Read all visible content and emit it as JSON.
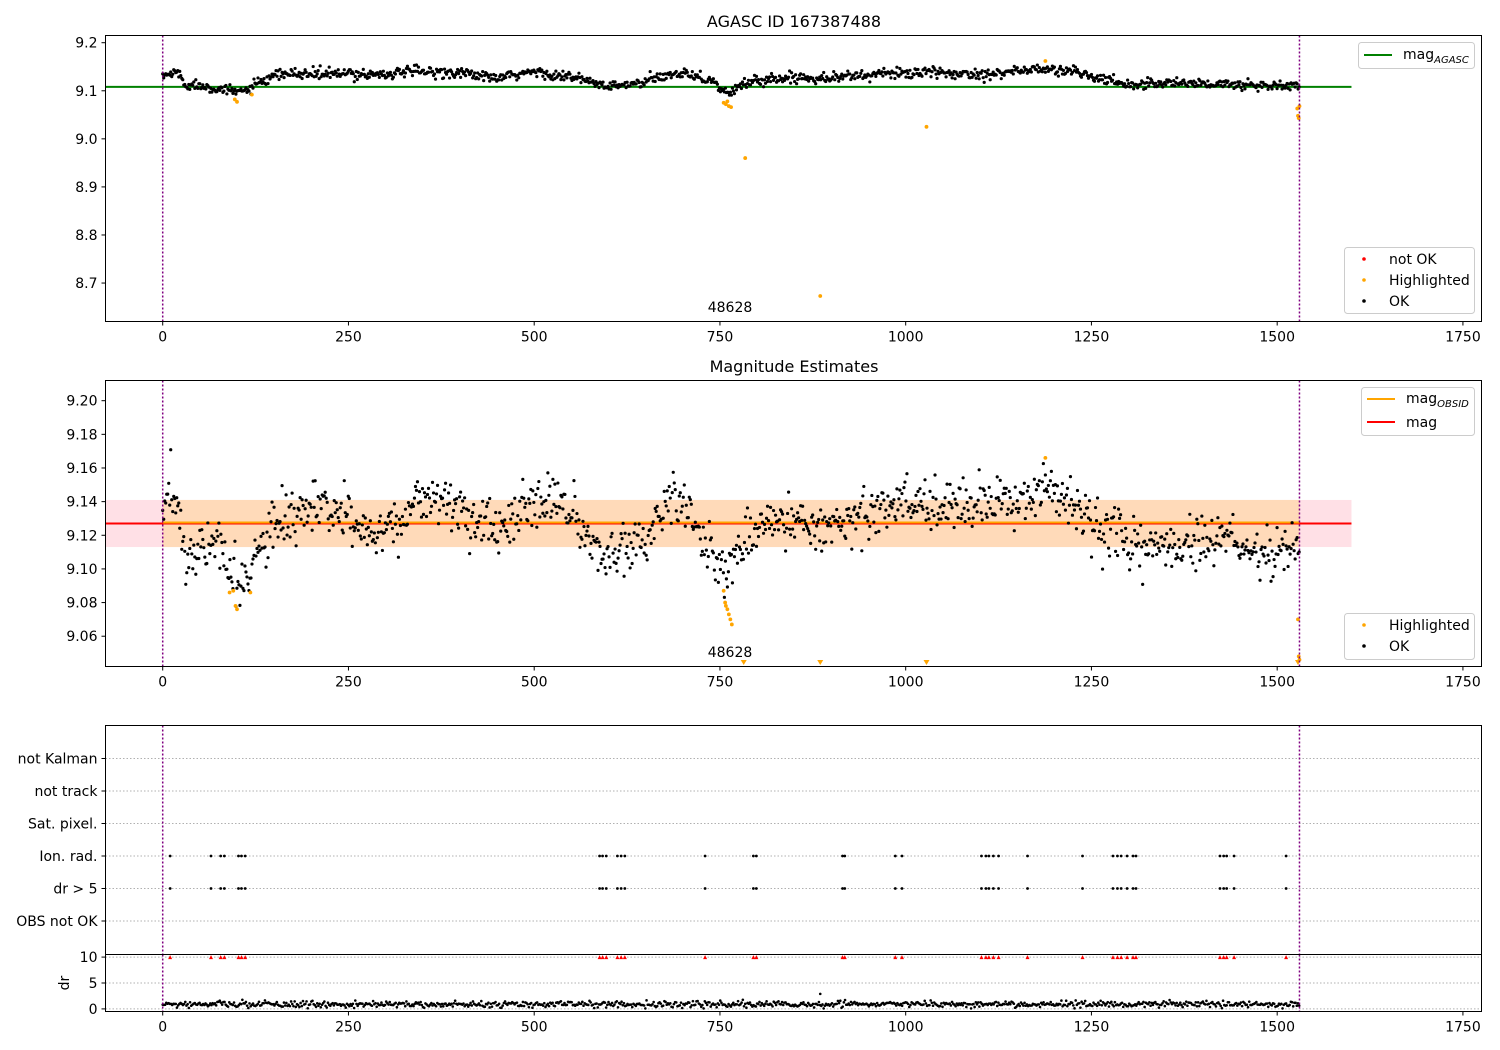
{
  "colors": {
    "ok": "#000000",
    "highlighted": "#ffa500",
    "not_ok": "#ff0000",
    "mag_agasc": "#008000",
    "mag_obsid": "#ffa500",
    "mag": "#ff0000",
    "obs_band": "#ffdab9",
    "mag_band": "#ffe0e6",
    "interval_line": "#800080",
    "grid": "#b0b0b0"
  },
  "chart_data": [
    {
      "id": "agasc",
      "type": "scatter",
      "title": "AGASC ID 167387488",
      "annotation": "48628",
      "annotation_x": 760,
      "xlim": [
        -77,
        1775
      ],
      "ylim": [
        8.62,
        9.215
      ],
      "xticks": [
        0,
        250,
        500,
        750,
        1000,
        1250,
        1500,
        1750
      ],
      "yticks": [
        8.7,
        8.8,
        8.9,
        9.0,
        9.1,
        9.2
      ],
      "grid": false,
      "legend": [
        {
          "label": "mag",
          "sub": "AGASC",
          "kind": "line",
          "color": "#008000",
          "placement": "top-right"
        },
        {
          "label": "not OK",
          "kind": "dot",
          "color": "#ff0000",
          "placement": "bottom-right"
        },
        {
          "label": "Highlighted",
          "kind": "dot",
          "color": "#ffa500",
          "placement": "bottom-right"
        },
        {
          "label": "OK",
          "kind": "dot",
          "color": "#000000",
          "placement": "bottom-right"
        }
      ],
      "hlines": [
        {
          "name": "mag_AGASC",
          "y": 9.108,
          "x": [
            -77,
            1600
          ],
          "color": "#008000"
        }
      ],
      "vlines": [
        0,
        1530
      ],
      "trend": [
        [
          0,
          9.13
        ],
        [
          20,
          9.14
        ],
        [
          30,
          9.113
        ],
        [
          60,
          9.11
        ],
        [
          90,
          9.098
        ],
        [
          110,
          9.1
        ],
        [
          130,
          9.115
        ],
        [
          160,
          9.135
        ],
        [
          250,
          9.135
        ],
        [
          300,
          9.135
        ],
        [
          340,
          9.14
        ],
        [
          400,
          9.138
        ],
        [
          450,
          9.125
        ],
        [
          500,
          9.14
        ],
        [
          560,
          9.125
        ],
        [
          600,
          9.108
        ],
        [
          640,
          9.115
        ],
        [
          700,
          9.14
        ],
        [
          740,
          9.12
        ],
        [
          760,
          9.093
        ],
        [
          790,
          9.12
        ],
        [
          850,
          9.128
        ],
        [
          900,
          9.128
        ],
        [
          1000,
          9.138
        ],
        [
          1100,
          9.135
        ],
        [
          1180,
          9.145
        ],
        [
          1230,
          9.14
        ],
        [
          1260,
          9.125
        ],
        [
          1300,
          9.113
        ],
        [
          1350,
          9.117
        ],
        [
          1400,
          9.115
        ],
        [
          1450,
          9.112
        ],
        [
          1520,
          9.11
        ],
        [
          1530,
          9.11
        ]
      ],
      "noise": 0.01,
      "highlighted_points": [
        [
          97,
          9.082
        ],
        [
          100,
          9.077
        ],
        [
          120,
          9.092
        ],
        [
          755,
          9.075
        ],
        [
          758,
          9.072
        ],
        [
          760,
          9.078
        ],
        [
          762,
          9.068
        ],
        [
          765,
          9.066
        ],
        [
          784,
          8.96
        ],
        [
          885,
          8.673
        ],
        [
          1028,
          9.025
        ],
        [
          1188,
          9.162
        ],
        [
          1527,
          9.063
        ],
        [
          1528,
          9.048
        ],
        [
          1529,
          9.043
        ],
        [
          1530,
          9.068
        ]
      ]
    },
    {
      "id": "estimates",
      "type": "scatter",
      "title": "Magnitude Estimates",
      "annotation": "48628",
      "annotation_x": 760,
      "xlim": [
        -77,
        1775
      ],
      "ylim": [
        9.042,
        9.212
      ],
      "xticks": [
        0,
        250,
        500,
        750,
        1000,
        1250,
        1500,
        1750
      ],
      "yticks": [
        9.06,
        9.08,
        9.1,
        9.12,
        9.14,
        9.16,
        9.18,
        9.2
      ],
      "grid": false,
      "legend": [
        {
          "label": "mag",
          "sub": "OBSID",
          "kind": "line",
          "color": "#ffa500",
          "placement": "top-right"
        },
        {
          "label": "mag",
          "kind": "line",
          "color": "#ff0000",
          "placement": "top-right"
        },
        {
          "label": "Highlighted",
          "kind": "dot",
          "color": "#ffa500",
          "placement": "bottom-right"
        },
        {
          "label": "OK",
          "kind": "dot",
          "color": "#000000",
          "placement": "bottom-right"
        }
      ],
      "mag": 9.127,
      "mag_band": [
        9.113,
        9.141
      ],
      "mag_band_x": [
        -77,
        1600
      ],
      "obs_band": [
        9.113,
        9.141
      ],
      "obs_band_x": [
        0,
        1530
      ],
      "mag_obsid": 9.127,
      "mag_obsid_x": [
        0,
        1530
      ],
      "vlines": [
        0,
        1530
      ],
      "trend": [
        [
          0,
          9.13
        ],
        [
          10,
          9.145
        ],
        [
          20,
          9.14
        ],
        [
          30,
          9.108
        ],
        [
          50,
          9.11
        ],
        [
          70,
          9.12
        ],
        [
          90,
          9.095
        ],
        [
          100,
          9.092
        ],
        [
          120,
          9.1
        ],
        [
          150,
          9.125
        ],
        [
          200,
          9.135
        ],
        [
          250,
          9.13
        ],
        [
          280,
          9.122
        ],
        [
          320,
          9.128
        ],
        [
          350,
          9.145
        ],
        [
          400,
          9.135
        ],
        [
          450,
          9.122
        ],
        [
          500,
          9.14
        ],
        [
          540,
          9.14
        ],
        [
          570,
          9.118
        ],
        [
          600,
          9.102
        ],
        [
          620,
          9.115
        ],
        [
          650,
          9.118
        ],
        [
          680,
          9.142
        ],
        [
          700,
          9.135
        ],
        [
          730,
          9.118
        ],
        [
          755,
          9.1
        ],
        [
          775,
          9.108
        ],
        [
          800,
          9.125
        ],
        [
          850,
          9.13
        ],
        [
          900,
          9.125
        ],
        [
          950,
          9.133
        ],
        [
          1000,
          9.14
        ],
        [
          1050,
          9.138
        ],
        [
          1100,
          9.14
        ],
        [
          1150,
          9.14
        ],
        [
          1190,
          9.15
        ],
        [
          1230,
          9.135
        ],
        [
          1260,
          9.123
        ],
        [
          1300,
          9.112
        ],
        [
          1350,
          9.115
        ],
        [
          1400,
          9.113
        ],
        [
          1440,
          9.12
        ],
        [
          1450,
          9.11
        ],
        [
          1500,
          9.108
        ],
        [
          1530,
          9.115
        ]
      ],
      "noise": 0.01,
      "highlighted_points": [
        [
          90,
          9.086
        ],
        [
          95,
          9.087
        ],
        [
          98,
          9.078
        ],
        [
          100,
          9.076
        ],
        [
          118,
          9.086
        ],
        [
          755,
          9.087
        ],
        [
          757,
          9.08
        ],
        [
          758,
          9.078
        ],
        [
          760,
          9.076
        ],
        [
          762,
          9.073
        ],
        [
          764,
          9.07
        ],
        [
          766,
          9.067
        ],
        [
          1188,
          9.166
        ],
        [
          1528,
          9.07
        ],
        [
          1529,
          9.048
        ],
        [
          1530,
          9.046
        ]
      ],
      "offscale_markers": [
        782,
        885,
        1028,
        1528
      ]
    },
    {
      "id": "flags",
      "type": "scatter",
      "categories": [
        "not Kalman",
        "not track",
        "Sat. pixel.",
        "Ion. rad.",
        "dr > 5",
        "OBS not OK"
      ],
      "xlim": [
        -77,
        1775
      ],
      "grid": true,
      "flag_x": [
        10,
        65,
        78,
        83,
        102,
        106,
        111,
        588,
        592,
        597,
        612,
        617,
        622,
        730,
        795,
        799,
        915,
        918,
        986,
        995,
        1102,
        1108,
        1112,
        1118,
        1125,
        1164,
        1238,
        1279,
        1285,
        1290,
        1298,
        1306,
        1310,
        1423,
        1428,
        1432,
        1442,
        1512
      ],
      "flag_rows": [
        "Ion. rad.",
        "dr > 5"
      ],
      "vlines": [
        0,
        1530
      ]
    },
    {
      "id": "dr",
      "type": "scatter",
      "ylabel": "dr",
      "xlim": [
        -77,
        1775
      ],
      "ylim": [
        -0.5,
        10.5
      ],
      "xticks": [
        0,
        250,
        500,
        750,
        1000,
        1250,
        1500,
        1750
      ],
      "yticks": [
        0,
        5,
        10
      ],
      "grid": true,
      "mean_dr": 0.9,
      "dr_spike": [
        885,
        2.9
      ],
      "capped_value": 10,
      "vlines": [
        0,
        1530
      ]
    }
  ],
  "axes_labels": {
    "xtick_labels": [
      "0",
      "250",
      "500",
      "750",
      "1000",
      "1250",
      "1500",
      "1750"
    ],
    "p1_ytick_labels": [
      "8.7",
      "8.8",
      "8.9",
      "9.0",
      "9.1",
      "9.2"
    ],
    "p2_ytick_labels": [
      "9.06",
      "9.08",
      "9.10",
      "9.12",
      "9.14",
      "9.16",
      "9.18",
      "9.20"
    ],
    "p4_ytick_labels": [
      "0",
      "5",
      "10"
    ]
  }
}
